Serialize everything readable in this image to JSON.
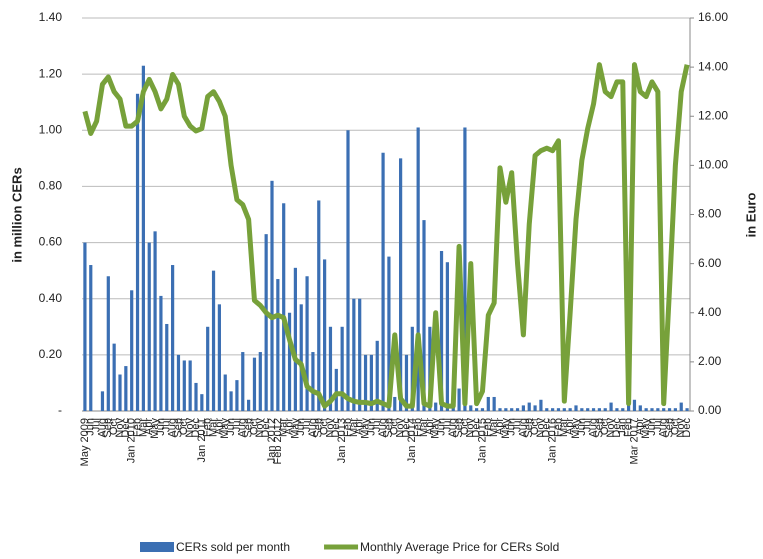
{
  "chart_data": {
    "type": "bar-line",
    "y_label": "in million CERs",
    "y2_label": "in Euro",
    "categories": [
      "May 2009",
      "Jun",
      "Jul",
      "Aug",
      "Sep",
      "Oct",
      "Nov",
      "Dec",
      "Jan 2010",
      "Feb",
      "Mar",
      "Apr",
      "May",
      "Jun",
      "Jul",
      "Aug",
      "Sep",
      "Oct",
      "Nov",
      "Dec",
      "Jan 2011",
      "Feb",
      "Mar",
      "Apr",
      "May",
      "Jun",
      "Jul",
      "Aug",
      "Sep",
      "Oct",
      "Nov",
      "Dec",
      "Jan 2012",
      "Feb 2012",
      "Mar",
      "Apr",
      "May",
      "Jun",
      "Jul",
      "Aug",
      "Sep",
      "Oct",
      "Nov",
      "Dec",
      "Jan 2013",
      "Feb",
      "Mar",
      "Apr",
      "May",
      "Jun",
      "Jul",
      "Aug",
      "Sep",
      "Oct",
      "Nov",
      "Dec",
      "Jan 2014",
      "Feb",
      "Mar",
      "Apr",
      "May",
      "Jun",
      "Jul",
      "Aug",
      "Sep",
      "Oct",
      "Nov",
      "Dec",
      "Jan 2015",
      "Feb",
      "Mar",
      "Apr",
      "May",
      "Jun",
      "Jul",
      "Aug",
      "Sep",
      "Oct",
      "Nov",
      "Dec",
      "Jan 2016",
      "Feb",
      "Mar",
      "Apr",
      "May",
      "Jun",
      "Jul",
      "Aug",
      "Sep",
      "Oct",
      "Nov",
      "Dec",
      "Jan",
      "Feb",
      "Mar 2017",
      "Apr",
      "May",
      "Jun",
      "Jul",
      "Aug",
      "Sep",
      "Oct",
      "Nov",
      "Dec"
    ],
    "series": [
      {
        "name": "CERs sold per month",
        "kind": "bar",
        "color": "#3b6fb3",
        "values": [
          0.6,
          0.52,
          0,
          0.07,
          0.48,
          0.24,
          0.13,
          0.16,
          0.43,
          1.13,
          1.23,
          0.6,
          0.64,
          0.41,
          0.31,
          0.52,
          0.2,
          0.18,
          0.18,
          0.1,
          0.06,
          0.3,
          0.5,
          0.38,
          0.13,
          0.07,
          0.11,
          0.21,
          0.04,
          0.19,
          0.21,
          0.63,
          0.82,
          0.47,
          0.74,
          0.35,
          0.51,
          0.38,
          0.48,
          0.21,
          0.75,
          0.54,
          0.3,
          0.15,
          0.3,
          1.0,
          0.4,
          0.4,
          0.2,
          0.2,
          0.25,
          0.92,
          0.55,
          0.05,
          0.9,
          0.2,
          0.3,
          1.01,
          0.68,
          0.3,
          0.03,
          0.57,
          0.53,
          0.07,
          0.08,
          1.01,
          0.02,
          0.01,
          0.01,
          0.05,
          0.05,
          0.01,
          0.01,
          0.01,
          0.01,
          0.02,
          0.03,
          0.02,
          0.04,
          0.01,
          0.01,
          0.01,
          0.01,
          0.01,
          0.02,
          0.01,
          0.01,
          0.01,
          0.01,
          0.01,
          0.03,
          0.01,
          0.01,
          0.02,
          0.04,
          0.02,
          0.01,
          0.01,
          0.01,
          0.01,
          0.01,
          0.01,
          0.03,
          0.01
        ]
      },
      {
        "name": "Monthly Average Price for CERs Sold",
        "kind": "line",
        "axis": "y2",
        "color": "#77a13a",
        "values": [
          12.2,
          11.3,
          11.8,
          13.3,
          13.6,
          13.0,
          12.7,
          11.6,
          11.6,
          11.8,
          13.0,
          13.5,
          13.0,
          12.3,
          12.7,
          13.7,
          13.3,
          12.0,
          11.6,
          11.4,
          11.5,
          12.8,
          13.0,
          12.6,
          12.0,
          10.0,
          8.6,
          8.4,
          7.8,
          4.5,
          4.3,
          4.0,
          3.8,
          3.9,
          3.8,
          2.9,
          2.1,
          1.9,
          1.0,
          0.8,
          0.7,
          0.2,
          0.4,
          0.7,
          0.7,
          0.5,
          0.4,
          0.35,
          0.35,
          0.3,
          0.4,
          0.3,
          0.2,
          3.1,
          0.5,
          0.2,
          0.2,
          3.1,
          0.3,
          0.2,
          4.0,
          0.3,
          0.2,
          0.2,
          6.7,
          0.3,
          6.0,
          0.3,
          0.8,
          3.9,
          4.4,
          9.9,
          8.5,
          9.7,
          6.0,
          3.1,
          7.6,
          10.4,
          10.6,
          10.7,
          10.6,
          11.0,
          0.4,
          4.0,
          7.8,
          10.2,
          11.5,
          12.5,
          14.1,
          13.0,
          12.8,
          13.4,
          13.4,
          0.3,
          14.1,
          13.0,
          12.8,
          13.4,
          13.0,
          0.3,
          5.0,
          10.0,
          13.0,
          14.1
        ]
      }
    ],
    "ylim": [
      0,
      1.4
    ],
    "yticks": [
      {
        "value": 0,
        "label": "-"
      },
      {
        "value": 0.2,
        "label": "0.20"
      },
      {
        "value": 0.4,
        "label": "0.40"
      },
      {
        "value": 0.6,
        "label": "0.60"
      },
      {
        "value": 0.8,
        "label": "0.80"
      },
      {
        "value": 1.0,
        "label": "1.00"
      },
      {
        "value": 1.2,
        "label": "1.20"
      },
      {
        "value": 1.4,
        "label": "1.40"
      }
    ],
    "y2lim": [
      0,
      16
    ],
    "y2ticks": [
      {
        "value": 0,
        "label": "0.00"
      },
      {
        "value": 2,
        "label": "2.00"
      },
      {
        "value": 4,
        "label": "4.00"
      },
      {
        "value": 6,
        "label": "6.00"
      },
      {
        "value": 8,
        "label": "8.00"
      },
      {
        "value": 10,
        "label": "10.00"
      },
      {
        "value": 12,
        "label": "12.00"
      },
      {
        "value": 14,
        "label": "14.00"
      },
      {
        "value": 16,
        "label": "16.00"
      }
    ],
    "grid": true,
    "legend": "bottom"
  }
}
